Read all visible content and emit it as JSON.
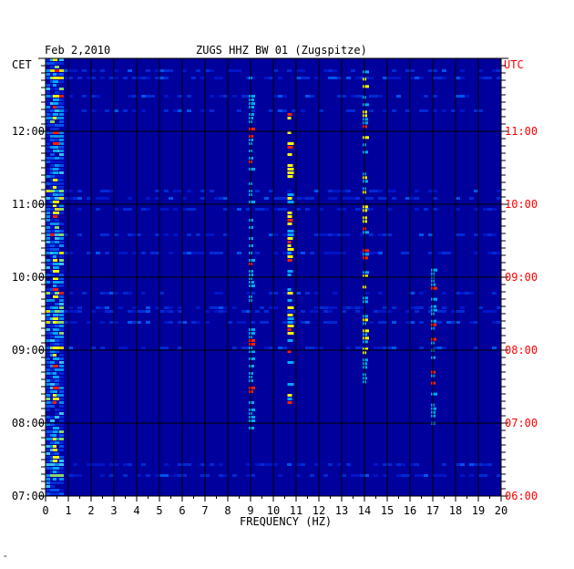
{
  "chart_data": {
    "type": "heatmap",
    "title_date": "Feb 2,2010",
    "title": "ZUGS HHZ BW 01 (Zugspitze)",
    "left_timezone": "CET",
    "right_timezone": "UTC",
    "xlabel": "FREQUENCY (HZ)",
    "x_ticks": [
      "0",
      "1",
      "2",
      "3",
      "4",
      "5",
      "6",
      "7",
      "8",
      "9",
      "10",
      "11",
      "12",
      "13",
      "14",
      "15",
      "16",
      "17",
      "18",
      "19",
      "20"
    ],
    "xlim": [
      0,
      20
    ],
    "left_time_ticks": [
      "12:00",
      "11:00",
      "10:00",
      "09:00",
      "08:00",
      "07:00"
    ],
    "right_time_ticks": [
      "11:00",
      "10:00",
      "09:00",
      "08:00",
      "07:00",
      "06:00"
    ],
    "time_range_cet": [
      "07:00",
      "13:00"
    ],
    "colors": {
      "background": "#00009c",
      "low": "#0018d0",
      "mid": "#00a8ff",
      "high": "#ffff00",
      "peak": "#ff2000",
      "grid": "#000000",
      "utc_text": "#ff0000"
    },
    "features": [
      {
        "name": "low-frequency band",
        "freq": 0.4,
        "from_cet": "07:00",
        "to_cet": "13:00",
        "level": "high"
      },
      {
        "name": "9 Hz line",
        "freq": 9.0,
        "from_cet": "07:45",
        "to_cet": "12:45",
        "level": "mid"
      },
      {
        "name": "10.7 Hz line",
        "freq": 10.7,
        "from_cet": "08:15",
        "to_cet": "12:15",
        "level": "high"
      },
      {
        "name": "14 Hz line",
        "freq": 14.0,
        "from_cet": "08:30",
        "to_cet": "12:50",
        "level": "high"
      },
      {
        "name": "17 Hz line",
        "freq": 17.0,
        "from_cet": "08:00",
        "to_cet": "10:10",
        "level": "mid"
      }
    ]
  },
  "footer_mark": "\""
}
